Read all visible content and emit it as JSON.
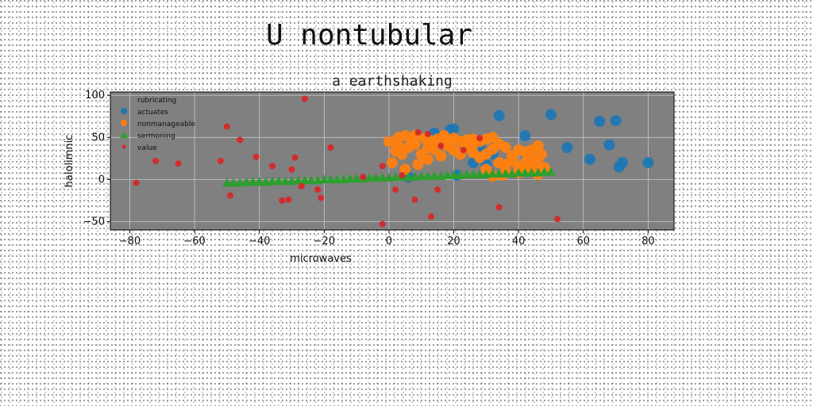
{
  "suptitle": "U nontubular",
  "chart_data": {
    "type": "scatter",
    "title": "a earthshaking",
    "xlabel": "microwaves",
    "ylabel": "halolimnic",
    "xlim": [
      -86,
      88
    ],
    "ylim": [
      -60,
      104
    ],
    "xticks": [
      -80,
      -60,
      -40,
      -20,
      0,
      20,
      40,
      60,
      80
    ],
    "yticks": [
      -50,
      0,
      50,
      100
    ],
    "grid": true,
    "legend": {
      "position": "top-left",
      "title": "rubricating",
      "entries": [
        "actuates",
        "nonmanageable",
        "sermoning",
        "value"
      ]
    },
    "colors": {
      "plot_background": "#808080",
      "actuates": "#1f77b4",
      "nonmanageable": "#ff7f0e",
      "sermoning": "#2ca02c",
      "value": "#d62728"
    },
    "series": [
      {
        "name": "actuates",
        "marker": "circle",
        "points": [
          [
            34,
            76
          ],
          [
            50,
            77
          ],
          [
            65,
            69
          ],
          [
            70,
            70
          ],
          [
            42,
            52
          ],
          [
            55,
            38
          ],
          [
            62,
            24
          ],
          [
            68,
            41
          ],
          [
            71,
            15
          ],
          [
            72,
            20
          ],
          [
            80,
            20
          ],
          [
            14,
            55
          ],
          [
            19,
            59
          ],
          [
            20,
            60
          ],
          [
            26,
            20
          ],
          [
            30,
            18
          ],
          [
            21,
            5
          ],
          [
            6,
            3
          ],
          [
            32,
            30
          ],
          [
            44,
            30
          ],
          [
            28,
            40
          ]
        ]
      },
      {
        "name": "nonmanageable",
        "marker": "circle",
        "points": [
          [
            0,
            45
          ],
          [
            3,
            50
          ],
          [
            5,
            52
          ],
          [
            8,
            52
          ],
          [
            11,
            49
          ],
          [
            13,
            46
          ],
          [
            15,
            48
          ],
          [
            17,
            52
          ],
          [
            20,
            49
          ],
          [
            22,
            45
          ],
          [
            24,
            47
          ],
          [
            26,
            42
          ],
          [
            28,
            45
          ],
          [
            30,
            48
          ],
          [
            32,
            50
          ],
          [
            34,
            42
          ],
          [
            36,
            38
          ],
          [
            40,
            35
          ],
          [
            42,
            33
          ],
          [
            44,
            35
          ],
          [
            46,
            40
          ],
          [
            47,
            30
          ],
          [
            46,
            20
          ],
          [
            2,
            34
          ],
          [
            4,
            30
          ],
          [
            6,
            38
          ],
          [
            8,
            42
          ],
          [
            10,
            30
          ],
          [
            12,
            24
          ],
          [
            14,
            36
          ],
          [
            16,
            28
          ],
          [
            18,
            40
          ],
          [
            20,
            35
          ],
          [
            22,
            30
          ],
          [
            24,
            38
          ],
          [
            26,
            32
          ],
          [
            28,
            26
          ],
          [
            30,
            30
          ],
          [
            32,
            36
          ],
          [
            34,
            20
          ],
          [
            36,
            18
          ],
          [
            38,
            22
          ],
          [
            40,
            15
          ],
          [
            42,
            10
          ],
          [
            44,
            12
          ],
          [
            48,
            14
          ],
          [
            1,
            20
          ],
          [
            5,
            12
          ],
          [
            9,
            18
          ],
          [
            3,
            40
          ],
          [
            7,
            45
          ],
          [
            12,
            38
          ],
          [
            38,
            28
          ],
          [
            44,
            25
          ],
          [
            30,
            12
          ],
          [
            36,
            10
          ],
          [
            42,
            20
          ],
          [
            26,
            48
          ],
          [
            18,
            46
          ],
          [
            35,
            5
          ],
          [
            40,
            8
          ],
          [
            46,
            6
          ],
          [
            32,
            4
          ]
        ]
      },
      {
        "name": "sermoning",
        "marker": "triangle",
        "points": [
          [
            -50,
            -4
          ],
          [
            -48,
            -4
          ],
          [
            -46,
            -4
          ],
          [
            -44,
            -3
          ],
          [
            -42,
            -3
          ],
          [
            -40,
            -3
          ],
          [
            -38,
            -3
          ],
          [
            -36,
            -2
          ],
          [
            -34,
            -2
          ],
          [
            -32,
            -2
          ],
          [
            -30,
            -2
          ],
          [
            -28,
            -1
          ],
          [
            -26,
            -1
          ],
          [
            -24,
            -1
          ],
          [
            -22,
            -1
          ],
          [
            -20,
            0
          ],
          [
            -18,
            0
          ],
          [
            -16,
            0
          ],
          [
            -14,
            0
          ],
          [
            -12,
            1
          ],
          [
            -10,
            1
          ],
          [
            -8,
            1
          ],
          [
            -6,
            2
          ],
          [
            -4,
            2
          ],
          [
            -2,
            2
          ],
          [
            0,
            2
          ],
          [
            2,
            3
          ],
          [
            4,
            3
          ],
          [
            6,
            3
          ],
          [
            8,
            3
          ],
          [
            10,
            4
          ],
          [
            12,
            4
          ],
          [
            14,
            4
          ],
          [
            16,
            4
          ],
          [
            18,
            5
          ],
          [
            20,
            5
          ],
          [
            22,
            5
          ],
          [
            24,
            6
          ],
          [
            26,
            6
          ],
          [
            28,
            6
          ],
          [
            30,
            6
          ],
          [
            32,
            7
          ],
          [
            34,
            7
          ],
          [
            36,
            7
          ],
          [
            38,
            7
          ],
          [
            40,
            8
          ],
          [
            42,
            8
          ],
          [
            44,
            8
          ],
          [
            46,
            8
          ],
          [
            48,
            9
          ],
          [
            50,
            9
          ]
        ]
      },
      {
        "name": "value",
        "marker": "circle",
        "points": [
          [
            -78,
            -4
          ],
          [
            -72,
            22
          ],
          [
            -65,
            19
          ],
          [
            -52,
            22
          ],
          [
            -50,
            63
          ],
          [
            -49,
            -19
          ],
          [
            -46,
            47
          ],
          [
            -41,
            27
          ],
          [
            -36,
            16
          ],
          [
            -33,
            -25
          ],
          [
            -31,
            -24
          ],
          [
            -30,
            12
          ],
          [
            -29,
            26
          ],
          [
            -27,
            -8
          ],
          [
            -26,
            96
          ],
          [
            -22,
            -12
          ],
          [
            -21,
            -22
          ],
          [
            -18,
            38
          ],
          [
            -8,
            3
          ],
          [
            -2,
            -53
          ],
          [
            -2,
            16
          ],
          [
            2,
            -12
          ],
          [
            4,
            5
          ],
          [
            8,
            -24
          ],
          [
            9,
            56
          ],
          [
            12,
            54
          ],
          [
            13,
            -44
          ],
          [
            15,
            -12
          ],
          [
            16,
            40
          ],
          [
            23,
            35
          ],
          [
            34,
            -33
          ],
          [
            52,
            -47
          ],
          [
            28,
            49
          ]
        ]
      }
    ]
  }
}
